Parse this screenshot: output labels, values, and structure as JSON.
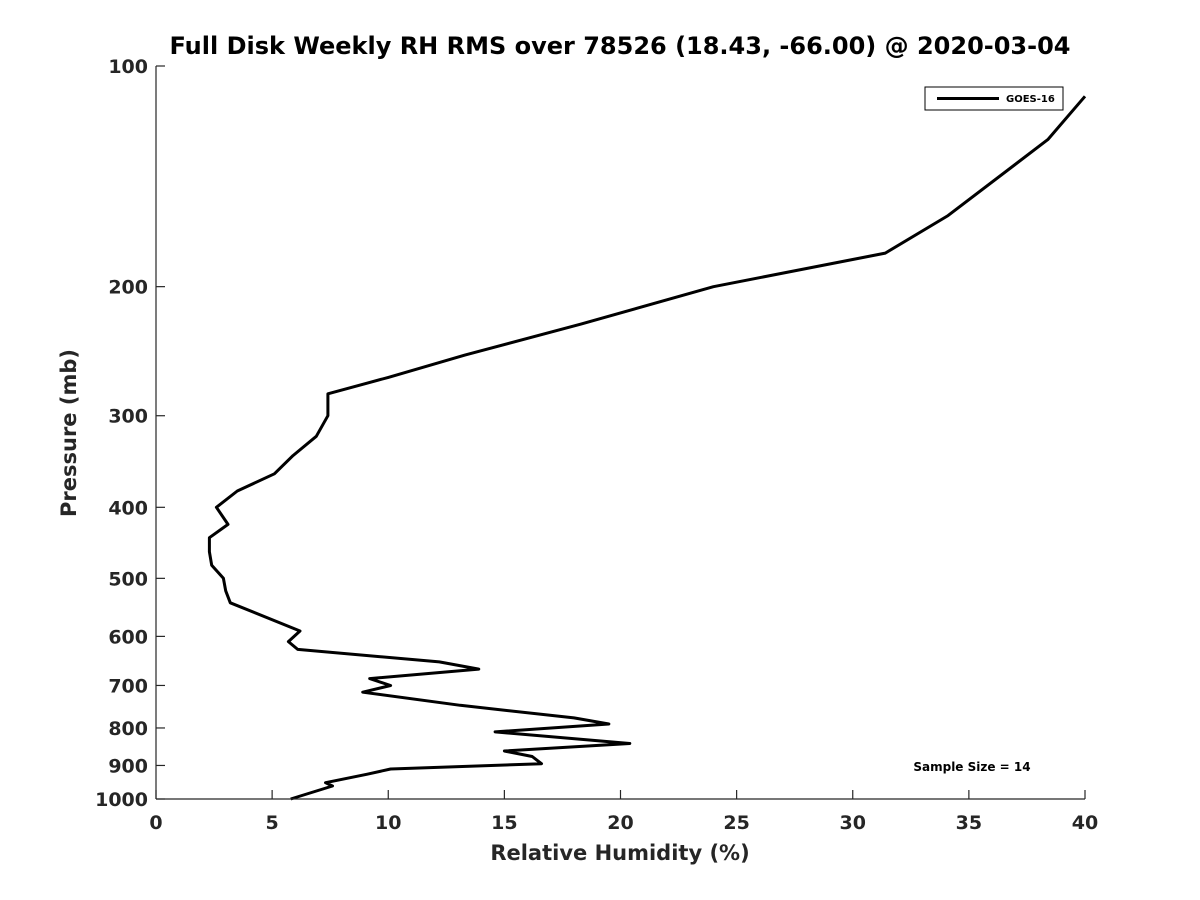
{
  "chart_data": {
    "type": "line",
    "title": "Full Disk Weekly RH RMS over 78526 (18.43, -66.00) @ 2020-03-04",
    "xlabel": "Relative Humidity (%)",
    "ylabel": "Pressure (mb)",
    "xlim": [
      0,
      40
    ],
    "ylim": [
      100,
      1000
    ],
    "y_scale": "log",
    "y_reversed": true,
    "x_ticks": [
      0,
      5,
      10,
      15,
      20,
      25,
      30,
      35,
      40
    ],
    "y_ticks": [
      100,
      200,
      300,
      400,
      500,
      600,
      700,
      800,
      900,
      1000
    ],
    "grid": false,
    "legend_position": "top-right",
    "annotation": "Sample Size = 14",
    "series": [
      {
        "name": "GOES-16",
        "color": "#000000",
        "points": [
          [
            40.0,
            110
          ],
          [
            38.4,
            126
          ],
          [
            34.1,
            160
          ],
          [
            31.4,
            180
          ],
          [
            24.0,
            200
          ],
          [
            18.3,
            225
          ],
          [
            13.3,
            248
          ],
          [
            10.0,
            266
          ],
          [
            7.4,
            280
          ],
          [
            7.4,
            300
          ],
          [
            6.9,
            320
          ],
          [
            5.9,
            340
          ],
          [
            5.1,
            360
          ],
          [
            3.5,
            380
          ],
          [
            2.6,
            400
          ],
          [
            3.1,
            422
          ],
          [
            2.3,
            440
          ],
          [
            2.3,
            460
          ],
          [
            2.4,
            480
          ],
          [
            2.9,
            500
          ],
          [
            3.0,
            520
          ],
          [
            3.2,
            540
          ],
          [
            6.2,
            590
          ],
          [
            5.7,
            610
          ],
          [
            6.1,
            625
          ],
          [
            12.2,
            650
          ],
          [
            13.9,
            665
          ],
          [
            9.2,
            685
          ],
          [
            10.1,
            700
          ],
          [
            8.9,
            715
          ],
          [
            13.1,
            745
          ],
          [
            18.0,
            775
          ],
          [
            19.5,
            790
          ],
          [
            14.6,
            810
          ],
          [
            20.4,
            840
          ],
          [
            15.0,
            860
          ],
          [
            16.2,
            875
          ],
          [
            16.6,
            895
          ],
          [
            10.1,
            910
          ],
          [
            9.1,
            925
          ],
          [
            7.3,
            950
          ],
          [
            7.6,
            960
          ],
          [
            5.8,
            1000
          ]
        ]
      }
    ]
  }
}
